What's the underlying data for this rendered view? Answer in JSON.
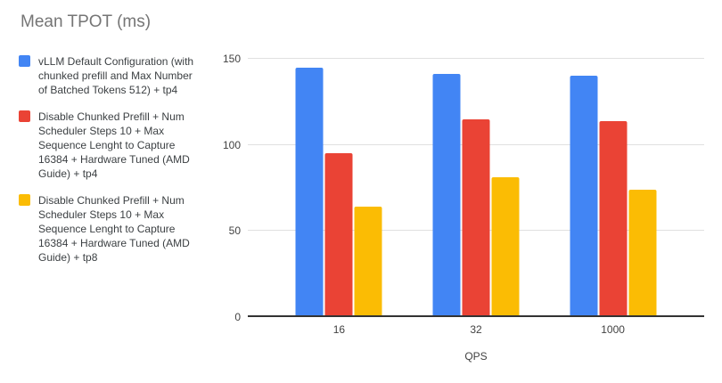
{
  "chart_data": {
    "type": "bar",
    "title": "Mean TPOT (ms)",
    "categories": [
      "16",
      "32",
      "1000"
    ],
    "series": [
      {
        "name": "vLLM Default Configuration (with chunked prefill and Max Number of Batched Tokens 512) + tp4",
        "color": "#4285F4",
        "values": [
          145,
          141,
          140
        ]
      },
      {
        "name": "Disable Chunked Prefill + Num Scheduler Steps 10 + Max Sequence Lenght to Capture 16384 + Hardware Tuned (AMD Guide) + tp4",
        "color": "#EA4335",
        "values": [
          95,
          115,
          114
        ]
      },
      {
        "name": "Disable Chunked Prefill + Num Scheduler Steps 10 + Max Sequence Lenght to Capture 16384 + Hardware Tuned (AMD Guide) + tp8",
        "color": "#FBBC04",
        "values": [
          64,
          81,
          74
        ]
      }
    ],
    "xlabel": "QPS",
    "ylabel": "",
    "ylim": [
      0,
      150
    ],
    "yticks": [
      0,
      50,
      100,
      150
    ],
    "grid": true,
    "legend_position": "left",
    "axis_colors": {
      "gridline": "#e0e0e0",
      "baseline": "#333333",
      "tick_label": "#424242",
      "title": "#757575"
    }
  }
}
